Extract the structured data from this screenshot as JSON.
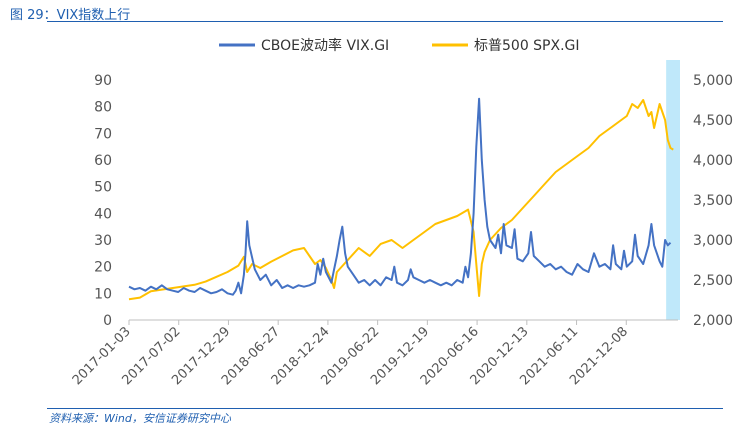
{
  "figure": {
    "title": "图 29：VIX指数上行",
    "source": "资料来源：Wind，安信证券研究中心"
  },
  "colors": {
    "vix": "#4472c4",
    "spx": "#ffc000",
    "highlight": "#bfe8fa",
    "axis": "#bfbfbf"
  },
  "chart_data": {
    "type": "line",
    "title": "",
    "legend_position": "top",
    "x_tick_labels": [
      "2017-01-03",
      "2017-07-02",
      "2017-12-29",
      "2018-06-27",
      "2018-12-24",
      "2019-06-22",
      "2019-12-19",
      "2020-06-16",
      "2020-12-13",
      "2021-06-11",
      "2021-12-08"
    ],
    "x_range": [
      0,
      100
    ],
    "y_left": {
      "min": 0,
      "max": 90,
      "ticks": [
        "0",
        "10",
        "20",
        "30",
        "40",
        "50",
        "60",
        "70",
        "80",
        "90"
      ]
    },
    "y_right": {
      "min": 2000,
      "max": 5000,
      "ticks": [
        "2,000",
        "2,500",
        "3,000",
        "3,500",
        "4,000",
        "4,500",
        "5,000"
      ]
    },
    "highlight_region": [
      98.2,
      100
    ],
    "series": [
      {
        "name": "CBOE波动率 VIX.GI",
        "axis": "left",
        "points": [
          [
            0,
            12.5
          ],
          [
            1,
            11.5
          ],
          [
            2,
            12
          ],
          [
            3,
            11
          ],
          [
            4,
            12.5
          ],
          [
            5,
            11.5
          ],
          [
            6,
            13
          ],
          [
            7,
            11.5
          ],
          [
            8,
            11
          ],
          [
            9,
            10.5
          ],
          [
            10,
            12
          ],
          [
            11,
            11
          ],
          [
            12,
            10.5
          ],
          [
            13,
            12
          ],
          [
            14,
            11
          ],
          [
            15,
            10
          ],
          [
            16,
            10.5
          ],
          [
            17,
            11.5
          ],
          [
            18,
            10
          ],
          [
            19,
            9.5
          ],
          [
            19.5,
            11
          ],
          [
            20,
            14
          ],
          [
            20.5,
            10
          ],
          [
            21,
            17
          ],
          [
            21.3,
            25
          ],
          [
            21.6,
            37
          ],
          [
            22,
            28
          ],
          [
            23,
            19
          ],
          [
            24,
            15
          ],
          [
            25,
            17
          ],
          [
            26,
            13
          ],
          [
            27,
            15
          ],
          [
            28,
            12
          ],
          [
            29,
            13
          ],
          [
            30,
            12
          ],
          [
            31,
            13
          ],
          [
            32,
            12.5
          ],
          [
            33,
            13
          ],
          [
            34,
            14
          ],
          [
            34.5,
            21
          ],
          [
            35,
            17
          ],
          [
            35.5,
            23
          ],
          [
            36,
            18
          ],
          [
            37,
            14
          ],
          [
            37.5,
            19
          ],
          [
            38,
            24
          ],
          [
            38.5,
            30
          ],
          [
            39,
            35
          ],
          [
            39.5,
            25
          ],
          [
            40,
            20
          ],
          [
            41,
            17
          ],
          [
            42,
            14
          ],
          [
            43,
            15
          ],
          [
            44,
            13
          ],
          [
            45,
            15
          ],
          [
            46,
            13
          ],
          [
            47,
            16
          ],
          [
            48,
            15
          ],
          [
            48.5,
            20
          ],
          [
            49,
            14
          ],
          [
            50,
            13
          ],
          [
            51,
            15
          ],
          [
            51.5,
            19
          ],
          [
            52,
            16
          ],
          [
            53,
            15
          ],
          [
            54,
            14
          ],
          [
            55,
            15
          ],
          [
            56,
            14
          ],
          [
            57,
            13
          ],
          [
            58,
            14
          ],
          [
            59,
            13
          ],
          [
            60,
            15
          ],
          [
            61,
            14
          ],
          [
            61.5,
            20
          ],
          [
            62,
            16
          ],
          [
            62.5,
            25
          ],
          [
            63,
            40
          ],
          [
            63.5,
            65
          ],
          [
            64,
            83
          ],
          [
            64.5,
            60
          ],
          [
            65,
            45
          ],
          [
            65.5,
            35
          ],
          [
            66,
            30
          ],
          [
            67,
            27
          ],
          [
            67.5,
            32
          ],
          [
            68,
            25
          ],
          [
            68.5,
            36
          ],
          [
            69,
            28
          ],
          [
            70,
            27
          ],
          [
            70.5,
            34
          ],
          [
            71,
            23
          ],
          [
            72,
            22
          ],
          [
            73,
            25
          ],
          [
            73.5,
            33
          ],
          [
            74,
            24
          ],
          [
            75,
            22
          ],
          [
            76,
            20
          ],
          [
            77,
            21
          ],
          [
            78,
            19
          ],
          [
            79,
            20
          ],
          [
            80,
            18
          ],
          [
            81,
            17
          ],
          [
            82,
            21
          ],
          [
            83,
            19
          ],
          [
            84,
            18
          ],
          [
            85,
            25
          ],
          [
            86,
            20
          ],
          [
            87,
            21
          ],
          [
            88,
            19
          ],
          [
            88.5,
            28
          ],
          [
            89,
            21
          ],
          [
            90,
            19
          ],
          [
            90.5,
            26
          ],
          [
            91,
            20
          ],
          [
            92,
            22
          ],
          [
            92.5,
            32
          ],
          [
            93,
            24
          ],
          [
            94,
            21
          ],
          [
            95,
            28
          ],
          [
            95.5,
            36
          ],
          [
            96,
            28
          ],
          [
            97,
            22
          ],
          [
            97.5,
            20
          ],
          [
            98,
            30
          ],
          [
            98.5,
            28
          ],
          [
            99,
            29
          ]
        ]
      },
      {
        "name": "标普500 SPX.GI",
        "axis": "right",
        "points": [
          [
            0,
            2260
          ],
          [
            2,
            2280
          ],
          [
            4,
            2360
          ],
          [
            6,
            2380
          ],
          [
            8,
            2400
          ],
          [
            10,
            2420
          ],
          [
            12,
            2440
          ],
          [
            14,
            2480
          ],
          [
            16,
            2540
          ],
          [
            18,
            2600
          ],
          [
            20,
            2680
          ],
          [
            21,
            2790
          ],
          [
            21.6,
            2600
          ],
          [
            22.5,
            2700
          ],
          [
            24,
            2650
          ],
          [
            26,
            2730
          ],
          [
            28,
            2800
          ],
          [
            30,
            2870
          ],
          [
            32,
            2900
          ],
          [
            33,
            2800
          ],
          [
            34,
            2700
          ],
          [
            35,
            2750
          ],
          [
            36,
            2650
          ],
          [
            37,
            2500
          ],
          [
            37.5,
            2400
          ],
          [
            38,
            2600
          ],
          [
            40,
            2750
          ],
          [
            42,
            2900
          ],
          [
            44,
            2800
          ],
          [
            46,
            2950
          ],
          [
            48,
            3000
          ],
          [
            50,
            2900
          ],
          [
            52,
            3000
          ],
          [
            54,
            3100
          ],
          [
            56,
            3200
          ],
          [
            58,
            3250
          ],
          [
            60,
            3300
          ],
          [
            62,
            3380
          ],
          [
            63,
            3100
          ],
          [
            63.5,
            2700
          ],
          [
            64,
            2300
          ],
          [
            64.5,
            2700
          ],
          [
            65,
            2850
          ],
          [
            66,
            3000
          ],
          [
            68,
            3150
          ],
          [
            70,
            3250
          ],
          [
            72,
            3400
          ],
          [
            74,
            3550
          ],
          [
            76,
            3700
          ],
          [
            78,
            3850
          ],
          [
            80,
            3950
          ],
          [
            82,
            4050
          ],
          [
            84,
            4150
          ],
          [
            86,
            4300
          ],
          [
            88,
            4400
          ],
          [
            90,
            4500
          ],
          [
            91,
            4550
          ],
          [
            92,
            4700
          ],
          [
            93,
            4650
          ],
          [
            94,
            4750
          ],
          [
            95,
            4550
          ],
          [
            95.5,
            4600
          ],
          [
            96,
            4400
          ],
          [
            97,
            4700
          ],
          [
            98,
            4500
          ],
          [
            98.5,
            4250
          ],
          [
            99,
            4150
          ],
          [
            99.5,
            4130
          ]
        ]
      }
    ]
  }
}
